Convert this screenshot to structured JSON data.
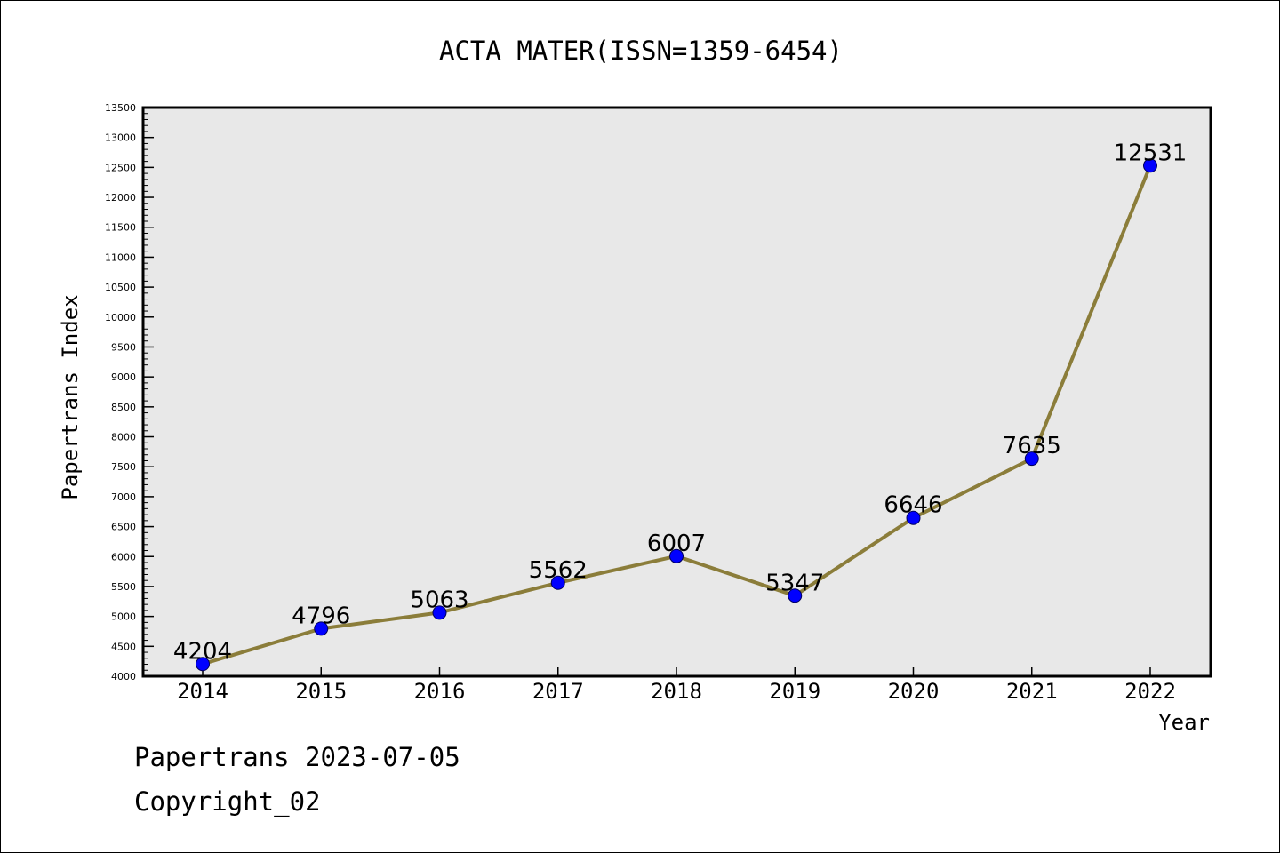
{
  "chart_data": {
    "type": "line",
    "title": "ACTA MATER(ISSN=1359-6454)",
    "xlabel": "Year",
    "ylabel": "Papertrans Index",
    "categories": [
      "2014",
      "2015",
      "2016",
      "2017",
      "2018",
      "2019",
      "2020",
      "2021",
      "2022"
    ],
    "series": [
      {
        "values": [
          4204,
          4796,
          5063,
          5562,
          6007,
          5347,
          6646,
          7635,
          12531
        ],
        "data_labels": [
          "4204",
          "4796",
          "5063",
          "5562",
          "6007",
          "5347",
          "6646",
          "7635",
          "12531"
        ]
      }
    ],
    "ylim": [
      4000,
      13500
    ],
    "yticks": [
      "4000",
      "4500",
      "5000",
      "5500",
      "6000",
      "6500",
      "7000",
      "7500",
      "8000",
      "8500",
      "9000",
      "9500",
      "10000",
      "10500",
      "11000",
      "11500",
      "12000",
      "12500",
      "13000",
      "13500"
    ],
    "grid": false,
    "plot_background": "#e8e8e8",
    "line_color": "#8b7d3a",
    "marker_color": "#0000ff"
  },
  "footer": {
    "line1": "Papertrans 2023-07-05",
    "line2": "Copyright_02"
  }
}
